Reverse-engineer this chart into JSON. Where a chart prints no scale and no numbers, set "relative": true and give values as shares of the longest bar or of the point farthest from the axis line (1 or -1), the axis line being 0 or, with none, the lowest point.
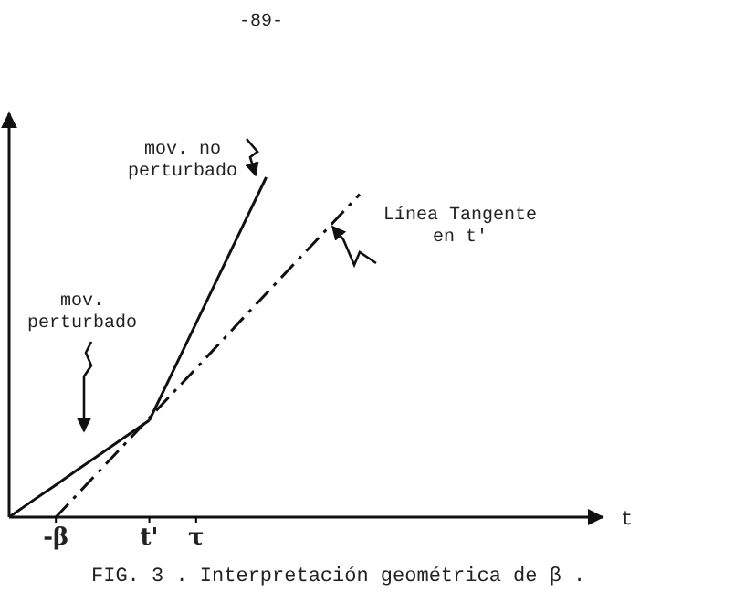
{
  "chart_data": {
    "type": "line",
    "title": "FIG. 3 . Interpretación geométrica de β .",
    "xlabel": "t",
    "relative": true,
    "categories": [
      null,
      null,
      "-β",
      null,
      null,
      null,
      "t'",
      null,
      "τ",
      null,
      null,
      null,
      null,
      null,
      null,
      null,
      null,
      null,
      null,
      null,
      null,
      null,
      null,
      null,
      null,
      null
    ],
    "series": [
      {
        "color": "#111111",
        "line_style": "solid",
        "values": [
          0,
          0.048,
          0.095,
          0.143,
          0.19,
          0.238,
          0.285,
          null,
          null,
          null,
          null,
          null,
          null,
          null,
          null,
          null,
          null,
          null,
          null,
          null,
          null,
          null,
          null,
          null,
          null,
          null
        ]
      },
      {
        "color": "#111111",
        "line_style": "solid",
        "values": [
          null,
          null,
          null,
          null,
          null,
          null,
          0.285,
          0.428,
          0.571,
          0.714,
          0.857,
          1,
          null,
          null,
          null,
          null,
          null,
          null,
          null,
          null,
          null,
          null,
          null,
          null,
          null,
          null
        ]
      },
      {
        "color": "#111111",
        "line_style": "dashed",
        "values": [
          null,
          null,
          0,
          0.073,
          0.146,
          0.219,
          0.292,
          0.365,
          0.438,
          0.511,
          0.585,
          0.658,
          0.731,
          0.804,
          0.877,
          0.95,
          null,
          null,
          null,
          null,
          null,
          null,
          null,
          null,
          null,
          null
        ]
      }
    ],
    "annotations": [
      "mov. no perturbado",
      "mov. perturbado",
      "Línea Tangente en t'",
      "-89-"
    ]
  }
}
